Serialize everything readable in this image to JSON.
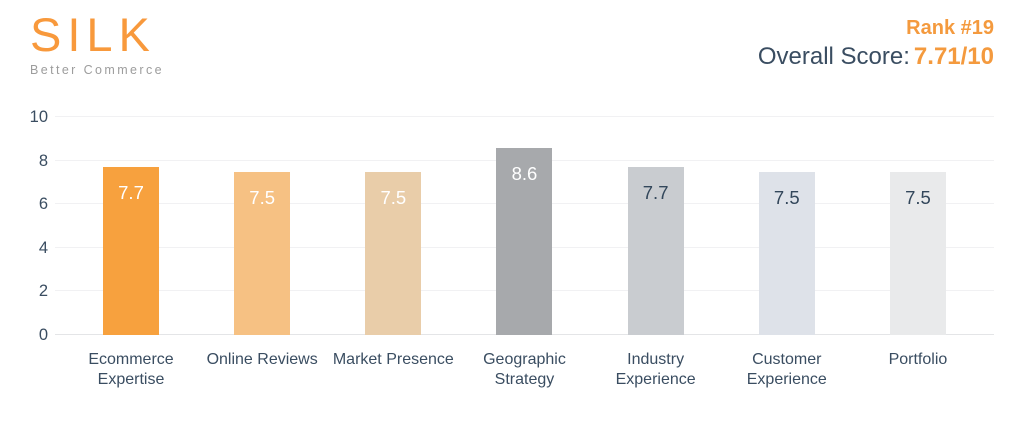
{
  "header": {
    "logo": {
      "title": "SILK",
      "subtitle": "Better Commerce"
    },
    "rank_label": "Rank #19",
    "score_label": "Overall Score:",
    "score_value": "7.71/10"
  },
  "colors": {
    "accent_orange": "#f49a3e",
    "navy_text": "#3a4d61",
    "tagline_gray": "#9d9d9d",
    "gridline": "#f1f1f3",
    "baseline": "#e4e5e7"
  },
  "chart_data": {
    "type": "bar",
    "title": "",
    "xlabel": "",
    "ylabel": "",
    "categories": [
      "Ecommerce Expertise",
      "Online Reviews",
      "Market Presence",
      "Geographic Strategy",
      "Industry Experience",
      "Customer Experience",
      "Portfolio"
    ],
    "values": [
      7.7,
      7.5,
      7.5,
      8.6,
      7.7,
      7.5,
      7.5
    ],
    "value_labels": [
      "7.7",
      "7.5",
      "7.5",
      "8.6",
      "7.7",
      "7.5",
      "7.5"
    ],
    "bar_colors": [
      "#f7a13e",
      "#f6c183",
      "#e9cda9",
      "#a7a9ac",
      "#c9ccd0",
      "#dee2e9",
      "#e9eaeb"
    ],
    "value_text_colors": [
      "#ffffff",
      "#ffffff",
      "#ffffff",
      "#ffffff",
      "#33475b",
      "#33475b",
      "#33475b"
    ],
    "ylim": [
      0,
      10
    ],
    "yticks": [
      0,
      2,
      4,
      6,
      8,
      10
    ],
    "grid": true,
    "legend": false
  }
}
